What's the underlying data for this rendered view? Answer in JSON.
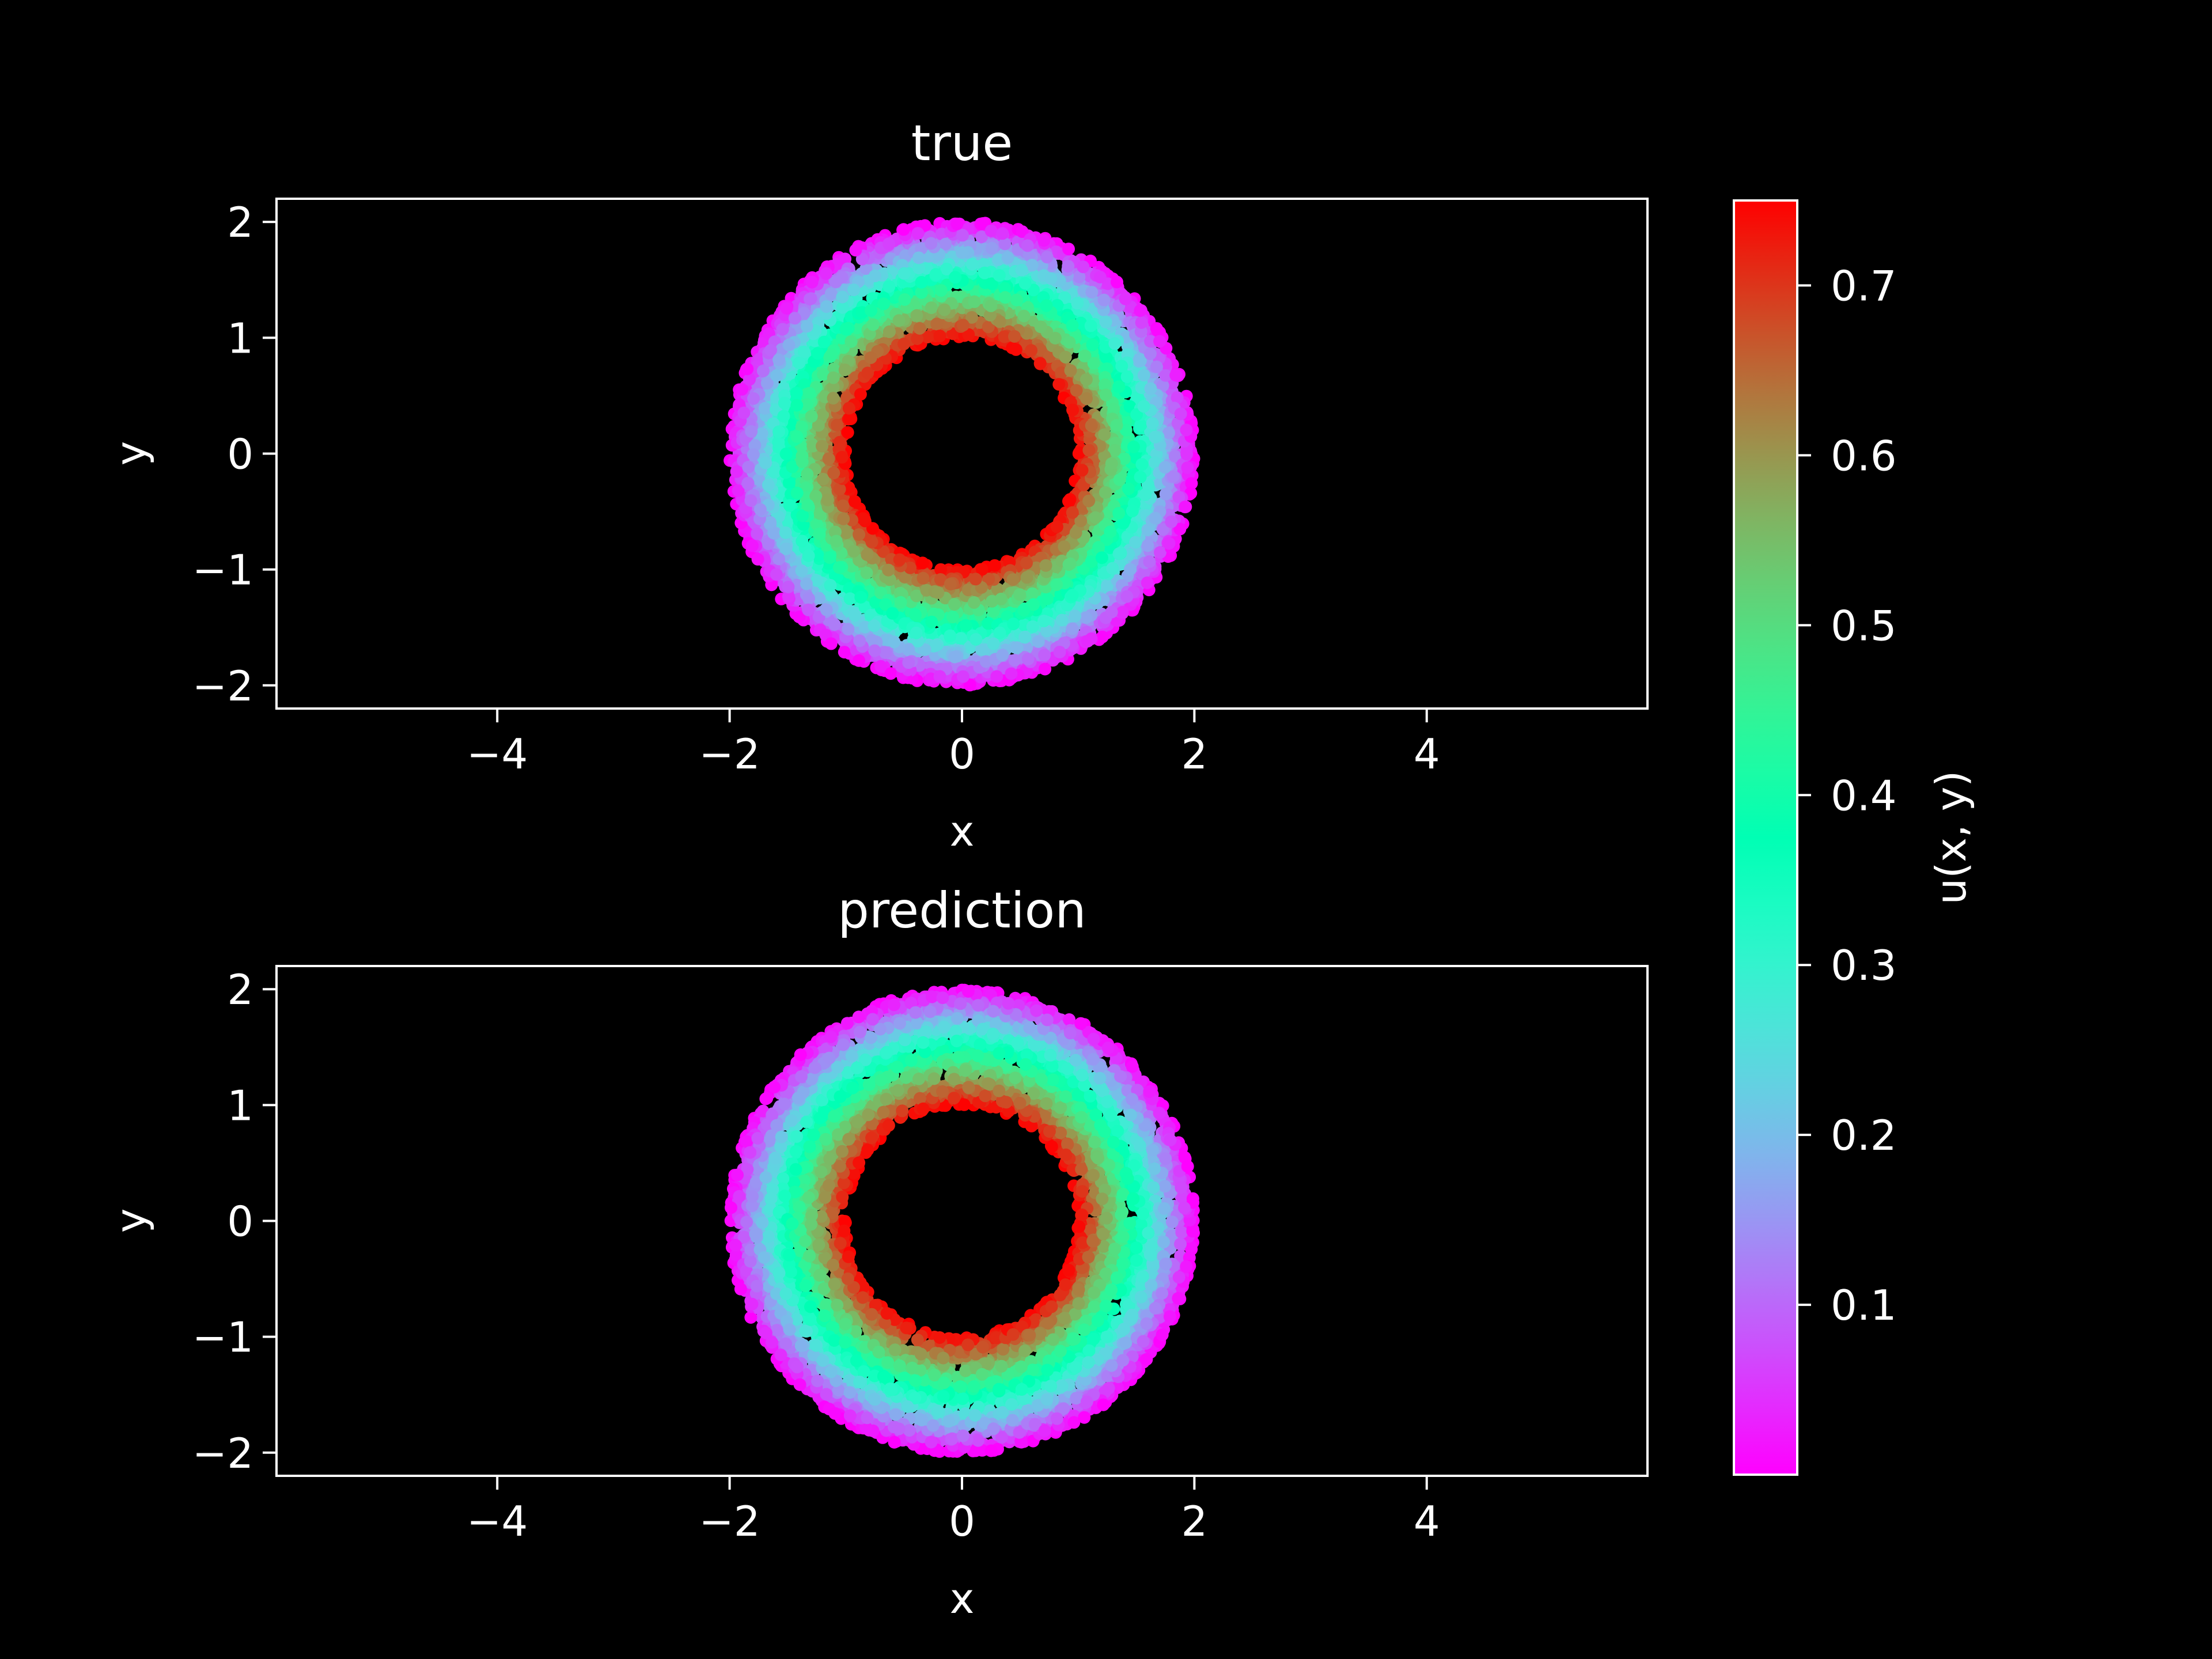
{
  "colors": {
    "background": "#000000",
    "foreground": "#ffffff",
    "colormap": "rainbow"
  },
  "chart_data": [
    {
      "type": "scatter",
      "title": "true",
      "xlabel": "x",
      "ylabel": "y",
      "xlim": [
        -5.9,
        5.9
      ],
      "ylim": [
        -2.2,
        2.2
      ],
      "xticks": [
        -4,
        -2,
        0,
        2,
        4
      ],
      "xtick_labels": [
        "−4",
        "−2",
        "0",
        "2",
        "4"
      ],
      "yticks": [
        -2,
        -1,
        0,
        1,
        2
      ],
      "ytick_labels": [
        "−2",
        "−1",
        "0",
        "1",
        "2"
      ],
      "domain": "annulus",
      "inner_radius": 1.0,
      "outer_radius": 2.0,
      "value_at_inner_radius": 0.75,
      "value_at_outer_radius": 0.0,
      "grid": false
    },
    {
      "type": "scatter",
      "title": "prediction",
      "xlabel": "x",
      "ylabel": "y",
      "xlim": [
        -5.9,
        5.9
      ],
      "ylim": [
        -2.2,
        2.2
      ],
      "xticks": [
        -4,
        -2,
        0,
        2,
        4
      ],
      "xtick_labels": [
        "−4",
        "−2",
        "0",
        "2",
        "4"
      ],
      "yticks": [
        -2,
        -1,
        0,
        1,
        2
      ],
      "ytick_labels": [
        "−2",
        "−1",
        "0",
        "1",
        "2"
      ],
      "domain": "annulus",
      "inner_radius": 1.0,
      "outer_radius": 2.0,
      "value_at_inner_radius": 0.75,
      "value_at_outer_radius": 0.0,
      "grid": false
    }
  ],
  "colorbar": {
    "label": "u(x, y)",
    "range": [
      0.0,
      0.75
    ],
    "ticks": [
      0.1,
      0.2,
      0.3,
      0.4,
      0.5,
      0.6,
      0.7
    ],
    "tick_labels": [
      "0.1",
      "0.2",
      "0.3",
      "0.4",
      "0.5",
      "0.6",
      "0.7"
    ]
  }
}
